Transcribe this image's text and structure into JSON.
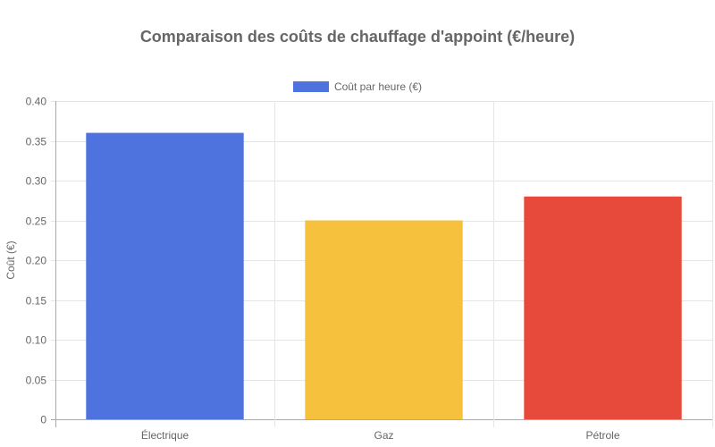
{
  "chart_data": {
    "type": "bar",
    "title": "Comparaison des coûts de chauffage d'appoint (€/heure)",
    "xlabel": "",
    "ylabel": "Coût (€)",
    "categories": [
      "Électrique",
      "Gaz",
      "Pétrole"
    ],
    "series": [
      {
        "name": "Coût par heure (€)",
        "values": [
          0.36,
          0.25,
          0.28
        ]
      }
    ],
    "bar_colors": [
      "#4e73df",
      "#f6c23e",
      "#e74a3b"
    ],
    "ylim": [
      0,
      0.4
    ],
    "yticks": [
      "0",
      "0.05",
      "0.10",
      "0.15",
      "0.20",
      "0.25",
      "0.30",
      "0.35",
      "0.40"
    ],
    "grid": true,
    "legend_position": "top"
  },
  "legend": {
    "label": "Coût par heure (€)",
    "color": "#4e73df"
  }
}
